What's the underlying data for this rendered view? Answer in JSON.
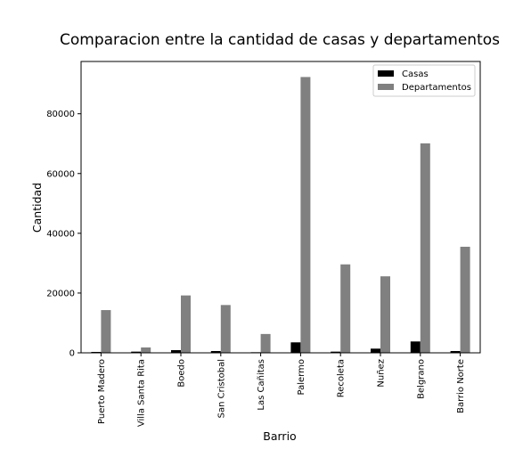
{
  "chart_data": {
    "type": "bar",
    "title": "Comparacion entre la cantidad de casas y departamentos",
    "xlabel": "Barrio",
    "ylabel": "Cantidad",
    "categories": [
      "Puerto Madero",
      "Villa Santa Rita",
      "Boedo",
      "San Cristobal",
      "Las Cañitas",
      "Palermo",
      "Recoleta",
      "Nuñez",
      "Belgrano",
      "Barrio Norte"
    ],
    "series": [
      {
        "name": "Casas",
        "color": "#000000",
        "values": [
          300,
          400,
          900,
          600,
          200,
          3500,
          400,
          1400,
          3800,
          600
        ]
      },
      {
        "name": "Departamentos",
        "color": "#808080",
        "values": [
          14300,
          1800,
          19200,
          16000,
          6300,
          92300,
          29600,
          25600,
          70100,
          35500
        ]
      }
    ],
    "ylim": [
      0,
      97500
    ],
    "yticks": [
      0,
      20000,
      40000,
      60000,
      80000
    ],
    "legend_position": "top-right",
    "grid": false
  }
}
